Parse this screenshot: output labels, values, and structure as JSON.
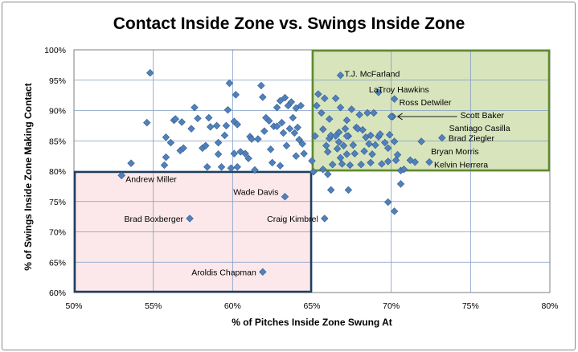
{
  "chart_data": {
    "type": "scatter",
    "title": "Contact Inside Zone vs. Swings Inside Zone",
    "xlabel": "% of Pitches Inside Zone Swung At",
    "ylabel": "% of Swings Inside Zone Making Contact",
    "xlim": [
      0.5,
      0.8
    ],
    "ylim": [
      0.6,
      1.0
    ],
    "x_ticks": [
      "50%",
      "55%",
      "60%",
      "65%",
      "70%",
      "75%",
      "80%"
    ],
    "y_ticks": [
      "60%",
      "65%",
      "70%",
      "75%",
      "80%",
      "85%",
      "90%",
      "95%",
      "100%"
    ],
    "grid": true,
    "legend": "none",
    "colors": {
      "marker": "#4f81bd",
      "marker_edge": "#385d8a",
      "high_box_fill": "#d8e4bc",
      "high_box_border": "#5f8a2e",
      "low_box_fill": "#fce8ea",
      "low_box_border": "#1f3e5e",
      "grid": "#7f9cc4"
    },
    "regions": [
      {
        "x": [
          0.65,
          0.8
        ],
        "y": [
          0.8,
          1.0
        ],
        "style": "high"
      },
      {
        "x": [
          0.5,
          0.65
        ],
        "y": [
          0.6,
          0.8
        ],
        "style": "low"
      }
    ],
    "points": [
      [
        0.548,
        0.962
      ],
      [
        0.546,
        0.88
      ],
      [
        0.536,
        0.813
      ],
      [
        0.53,
        0.793
      ],
      [
        0.558,
        0.856
      ],
      [
        0.558,
        0.823
      ],
      [
        0.557,
        0.81
      ],
      [
        0.561,
        0.847
      ],
      [
        0.563,
        0.884
      ],
      [
        0.564,
        0.886
      ],
      [
        0.568,
        0.881
      ],
      [
        0.567,
        0.834
      ],
      [
        0.569,
        0.838
      ],
      [
        0.574,
        0.87
      ],
      [
        0.576,
        0.905
      ],
      [
        0.578,
        0.887
      ],
      [
        0.581,
        0.838
      ],
      [
        0.583,
        0.842
      ],
      [
        0.585,
        0.888
      ],
      [
        0.586,
        0.873
      ],
      [
        0.584,
        0.807
      ],
      [
        0.59,
        0.875
      ],
      [
        0.591,
        0.847
      ],
      [
        0.591,
        0.828
      ],
      [
        0.593,
        0.807
      ],
      [
        0.595,
        0.859
      ],
      [
        0.596,
        0.875
      ],
      [
        0.598,
        0.945
      ],
      [
        0.597,
        0.901
      ],
      [
        0.599,
        0.805
      ],
      [
        0.602,
        0.926
      ],
      [
        0.601,
        0.882
      ],
      [
        0.603,
        0.877
      ],
      [
        0.601,
        0.829
      ],
      [
        0.603,
        0.807
      ],
      [
        0.605,
        0.832
      ],
      [
        0.608,
        0.829
      ],
      [
        0.611,
        0.857
      ],
      [
        0.61,
        0.821
      ],
      [
        0.612,
        0.853
      ],
      [
        0.614,
        0.802
      ],
      [
        0.616,
        0.853
      ],
      [
        0.618,
        0.941
      ],
      [
        0.619,
        0.922
      ],
      [
        0.621,
        0.888
      ],
      [
        0.62,
        0.866
      ],
      [
        0.623,
        0.883
      ],
      [
        0.624,
        0.836
      ],
      [
        0.625,
        0.814
      ],
      [
        0.626,
        0.874
      ],
      [
        0.628,
        0.905
      ],
      [
        0.628,
        0.874
      ],
      [
        0.63,
        0.916
      ],
      [
        0.631,
        0.88
      ],
      [
        0.63,
        0.809
      ],
      [
        0.632,
        0.863
      ],
      [
        0.633,
        0.921
      ],
      [
        0.634,
        0.842
      ],
      [
        0.635,
        0.908
      ],
      [
        0.636,
        0.87
      ],
      [
        0.637,
        0.914
      ],
      [
        0.638,
        0.888
      ],
      [
        0.639,
        0.863
      ],
      [
        0.64,
        0.904
      ],
      [
        0.641,
        0.872
      ],
      [
        0.642,
        0.852
      ],
      [
        0.644,
        0.845
      ],
      [
        0.643,
        0.908
      ],
      [
        0.645,
        0.829
      ],
      [
        0.64,
        0.825
      ],
      [
        0.652,
        0.858
      ],
      [
        0.653,
        0.908
      ],
      [
        0.654,
        0.927
      ],
      [
        0.656,
        0.896
      ],
      [
        0.657,
        0.869
      ],
      [
        0.658,
        0.92
      ],
      [
        0.659,
        0.842
      ],
      [
        0.66,
        0.832
      ],
      [
        0.661,
        0.886
      ],
      [
        0.661,
        0.854
      ],
      [
        0.662,
        0.859
      ],
      [
        0.663,
        0.811
      ],
      [
        0.665,
        0.92
      ],
      [
        0.665,
        0.858
      ],
      [
        0.666,
        0.837
      ],
      [
        0.667,
        0.848
      ],
      [
        0.667,
        0.864
      ],
      [
        0.668,
        0.905
      ],
      [
        0.668,
        0.822
      ],
      [
        0.669,
        0.812
      ],
      [
        0.67,
        0.842
      ],
      [
        0.671,
        0.87
      ],
      [
        0.672,
        0.884
      ],
      [
        0.672,
        0.828
      ],
      [
        0.673,
        0.858
      ],
      [
        0.674,
        0.81
      ],
      [
        0.675,
        0.902
      ],
      [
        0.676,
        0.843
      ],
      [
        0.677,
        0.829
      ],
      [
        0.678,
        0.872
      ],
      [
        0.679,
        0.87
      ],
      [
        0.68,
        0.893
      ],
      [
        0.681,
        0.811
      ],
      [
        0.682,
        0.868
      ],
      [
        0.683,
        0.833
      ],
      [
        0.684,
        0.856
      ],
      [
        0.685,
        0.896
      ],
      [
        0.686,
        0.845
      ],
      [
        0.687,
        0.859
      ],
      [
        0.687,
        0.814
      ],
      [
        0.688,
        0.828
      ],
      [
        0.689,
        0.896
      ],
      [
        0.69,
        0.843
      ],
      [
        0.692,
        0.857
      ],
      [
        0.693,
        0.861
      ],
      [
        0.694,
        0.812
      ],
      [
        0.696,
        0.847
      ],
      [
        0.698,
        0.838
      ],
      [
        0.699,
        0.86
      ],
      [
        0.698,
        0.816
      ],
      [
        0.701,
        0.89
      ],
      [
        0.702,
        0.849
      ],
      [
        0.703,
        0.818
      ],
      [
        0.704,
        0.827
      ],
      [
        0.706,
        0.801
      ],
      [
        0.708,
        0.803
      ],
      [
        0.712,
        0.818
      ],
      [
        0.715,
        0.815
      ],
      [
        0.662,
        0.769
      ],
      [
        0.673,
        0.769
      ],
      [
        0.698,
        0.749
      ],
      [
        0.702,
        0.734
      ],
      [
        0.706,
        0.779
      ],
      [
        0.66,
        0.795
      ],
      [
        0.651,
        0.799
      ],
      [
        0.657,
        0.803
      ],
      [
        0.65,
        0.817
      ],
      [
        0.672,
        0.858
      ]
    ],
    "labeled_points": [
      {
        "name": "T.J. McFarland",
        "x": 0.668,
        "y": 0.958
      },
      {
        "name": "LaTroy Hawkins",
        "x": 0.692,
        "y": 0.93
      },
      {
        "name": "Ross Detwiler",
        "x": 0.702,
        "y": 0.919
      },
      {
        "name": "Scott Baker",
        "x": 0.7,
        "y": 0.89
      },
      {
        "name": "Santiago Casilla",
        "x": 0.7,
        "y": 0.89
      },
      {
        "name": "Brad Ziegler",
        "x": 0.732,
        "y": 0.855
      },
      {
        "name": "Bryan Morris",
        "x": 0.719,
        "y": 0.849
      },
      {
        "name": "Kelvin Herrera",
        "x": 0.724,
        "y": 0.815
      },
      {
        "name": "Andrew  Miller",
        "x": 0.53,
        "y": 0.793
      },
      {
        "name": "Wade Davis",
        "x": 0.633,
        "y": 0.758
      },
      {
        "name": "Brad Boxberger",
        "x": 0.573,
        "y": 0.722
      },
      {
        "name": "Craig Kimbrel",
        "x": 0.658,
        "y": 0.722
      },
      {
        "name": "Aroldis Chapman",
        "x": 0.619,
        "y": 0.634
      }
    ]
  }
}
